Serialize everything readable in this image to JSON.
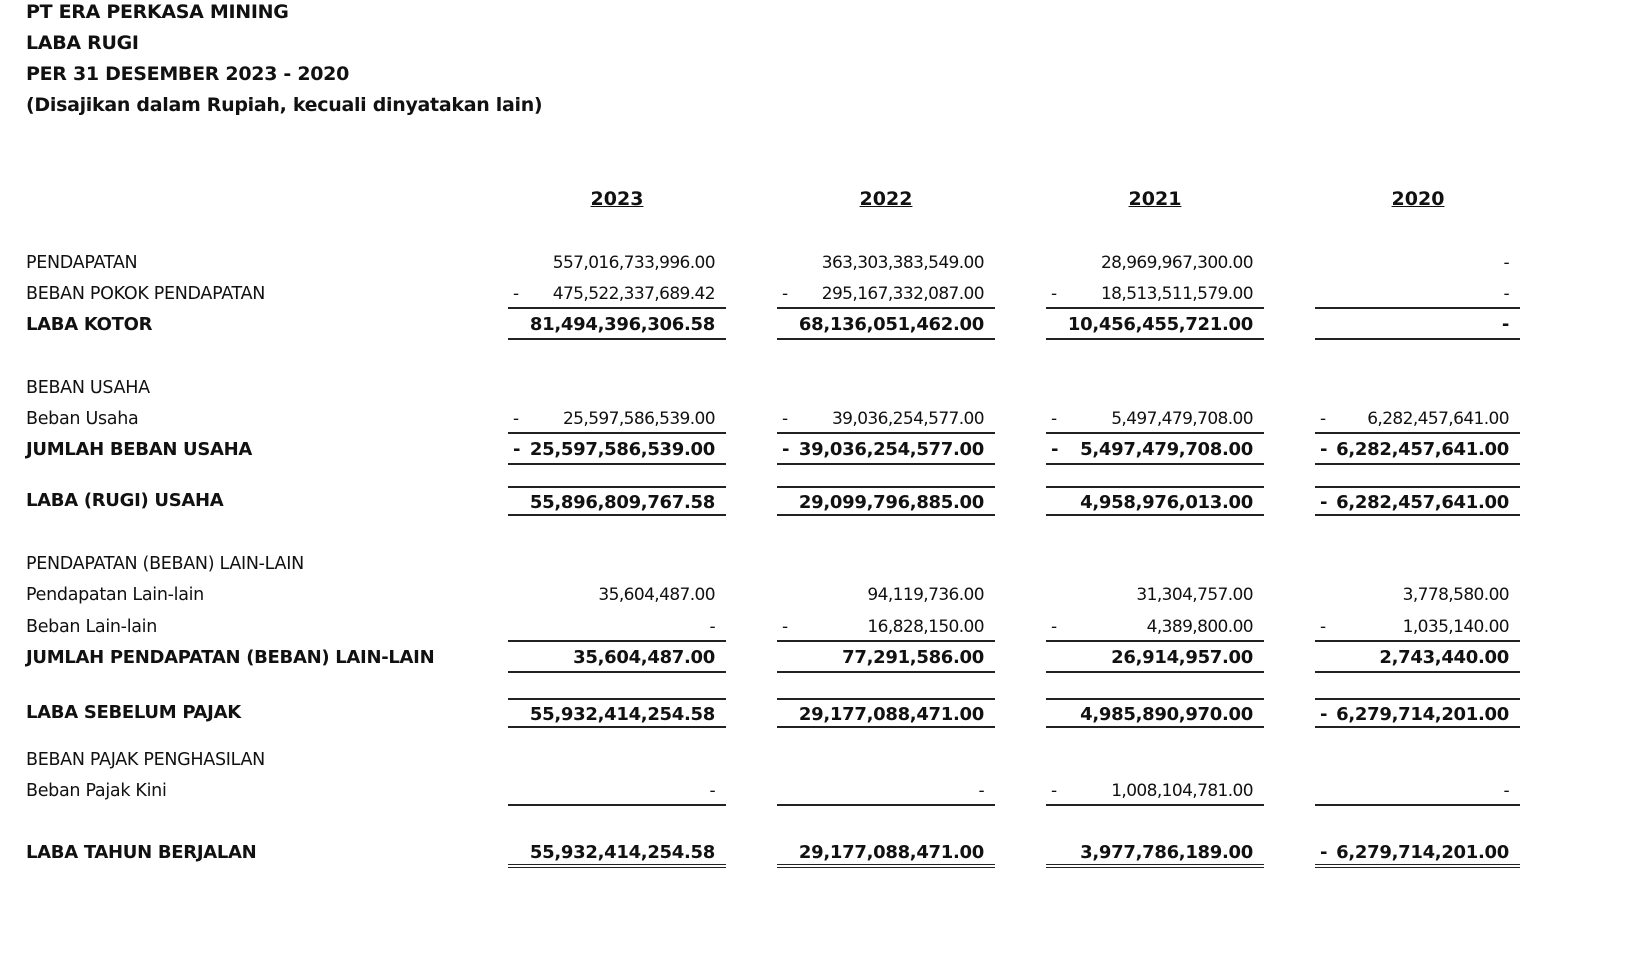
{
  "header": {
    "company": "PT ERA PERKASA MINING",
    "title": "LABA RUGI",
    "period": "PER 31 DESEMBER 2023 - 2020",
    "note": "(Disajikan dalam Rupiah, kecuali dinyatakan lain)"
  },
  "years": [
    "2023",
    "2022",
    "2021",
    "2020"
  ],
  "rows": [
    {
      "label": "PENDAPATAN",
      "bold": false,
      "values": [
        {
          "sign": "",
          "amount": "557,016,733,996.00"
        },
        {
          "sign": "",
          "amount": "363,303,383,549.00"
        },
        {
          "sign": "",
          "amount": "28,969,967,300.00"
        },
        {
          "sign": "",
          "amount": "-"
        }
      ]
    },
    {
      "label": "BEBAN POKOK PENDAPATAN",
      "bold": false,
      "values": [
        {
          "sign": "-",
          "amount": "475,522,337,689.42"
        },
        {
          "sign": "-",
          "amount": "295,167,332,087.00"
        },
        {
          "sign": "-",
          "amount": "18,513,511,579.00"
        },
        {
          "sign": "",
          "amount": "-"
        }
      ]
    },
    {
      "label": "LABA KOTOR",
      "bold": true,
      "values": [
        {
          "sign": "",
          "amount": "81,494,396,306.58"
        },
        {
          "sign": "",
          "amount": "68,136,051,462.00"
        },
        {
          "sign": "",
          "amount": "10,456,455,721.00"
        },
        {
          "sign": "",
          "amount": "-"
        }
      ]
    },
    {
      "label": "BEBAN USAHA",
      "bold": false,
      "values": []
    },
    {
      "label": "Beban Usaha",
      "bold": false,
      "values": [
        {
          "sign": "-",
          "amount": "25,597,586,539.00"
        },
        {
          "sign": "-",
          "amount": "39,036,254,577.00"
        },
        {
          "sign": "-",
          "amount": "5,497,479,708.00"
        },
        {
          "sign": "-",
          "amount": "6,282,457,641.00"
        }
      ]
    },
    {
      "label": "JUMLAH BEBAN USAHA",
      "bold": true,
      "values": [
        {
          "sign": "-",
          "amount": "25,597,586,539.00"
        },
        {
          "sign": "-",
          "amount": "39,036,254,577.00"
        },
        {
          "sign": "-",
          "amount": "5,497,479,708.00"
        },
        {
          "sign": "-",
          "amount": "6,282,457,641.00"
        }
      ]
    },
    {
      "label": "LABA (RUGI) USAHA",
      "bold": true,
      "values": [
        {
          "sign": "",
          "amount": "55,896,809,767.58"
        },
        {
          "sign": "",
          "amount": "29,099,796,885.00"
        },
        {
          "sign": "",
          "amount": "4,958,976,013.00"
        },
        {
          "sign": "-",
          "amount": "6,282,457,641.00"
        }
      ]
    },
    {
      "label": "PENDAPATAN (BEBAN) LAIN-LAIN",
      "bold": false,
      "values": []
    },
    {
      "label": "Pendapatan Lain-lain",
      "bold": false,
      "values": [
        {
          "sign": "",
          "amount": "35,604,487.00"
        },
        {
          "sign": "",
          "amount": "94,119,736.00"
        },
        {
          "sign": "",
          "amount": "31,304,757.00"
        },
        {
          "sign": "",
          "amount": "3,778,580.00"
        }
      ]
    },
    {
      "label": "Beban Lain-lain",
      "bold": false,
      "values": [
        {
          "sign": "",
          "amount": "-"
        },
        {
          "sign": "-",
          "amount": "16,828,150.00"
        },
        {
          "sign": "-",
          "amount": "4,389,800.00"
        },
        {
          "sign": "-",
          "amount": "1,035,140.00"
        }
      ]
    },
    {
      "label": "JUMLAH PENDAPATAN (BEBAN) LAIN-LAIN",
      "bold": true,
      "values": [
        {
          "sign": "",
          "amount": "35,604,487.00"
        },
        {
          "sign": "",
          "amount": "77,291,586.00"
        },
        {
          "sign": "",
          "amount": "26,914,957.00"
        },
        {
          "sign": "",
          "amount": "2,743,440.00"
        }
      ]
    },
    {
      "label": "LABA SEBELUM PAJAK",
      "bold": true,
      "values": [
        {
          "sign": "",
          "amount": "55,932,414,254.58"
        },
        {
          "sign": "",
          "amount": "29,177,088,471.00"
        },
        {
          "sign": "",
          "amount": "4,985,890,970.00"
        },
        {
          "sign": "-",
          "amount": "6,279,714,201.00"
        }
      ]
    },
    {
      "label": "BEBAN PAJAK PENGHASILAN",
      "bold": false,
      "values": []
    },
    {
      "label": "Beban Pajak Kini",
      "bold": false,
      "values": [
        {
          "sign": "",
          "amount": "-"
        },
        {
          "sign": "",
          "amount": "-"
        },
        {
          "sign": "-",
          "amount": "1,008,104,781.00"
        },
        {
          "sign": "",
          "amount": "-"
        }
      ]
    },
    {
      "label": "LABA TAHUN BERJALAN",
      "bold": true,
      "values": [
        {
          "sign": "",
          "amount": "55,932,414,254.58"
        },
        {
          "sign": "",
          "amount": "29,177,088,471.00"
        },
        {
          "sign": "",
          "amount": "3,977,786,189.00"
        },
        {
          "sign": "-",
          "amount": "6,279,714,201.00"
        }
      ]
    }
  ]
}
